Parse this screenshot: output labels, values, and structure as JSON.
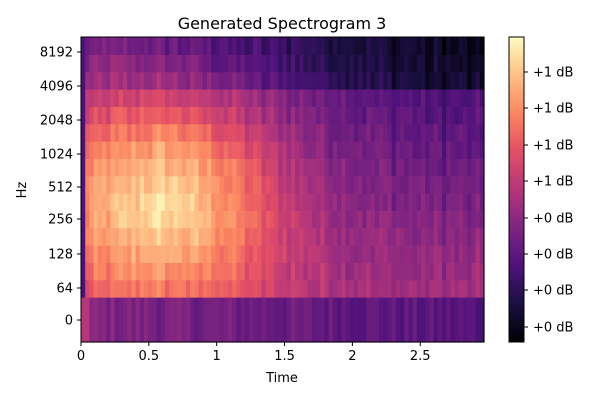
{
  "chart_data": {
    "type": "heatmap",
    "title": "Generated Spectrogram 3",
    "xlabel": "Time",
    "ylabel": "Hz",
    "x_range": [
      0,
      2.97
    ],
    "x_ticks": [
      0,
      0.5,
      1,
      1.5,
      2,
      2.5
    ],
    "x_tick_labels": [
      "0",
      "0.5",
      "1",
      "1.5",
      "2",
      "2.5"
    ],
    "y_scale": "symlog",
    "y_ticks": [
      0,
      64,
      128,
      256,
      512,
      1024,
      2048,
      4096,
      8192
    ],
    "y_tick_labels": [
      "0",
      "64",
      "128",
      "256",
      "512",
      "1024",
      "2048",
      "4096",
      "8192"
    ],
    "colormap": "magma",
    "colorbar": {
      "tick_labels": [
        "+0 dB",
        "+0 dB",
        "+0 dB",
        "+0 dB",
        "+1 dB",
        "+1 dB",
        "+1 dB",
        "+1 dB"
      ]
    },
    "grid": false,
    "pattern": {
      "time_bins": 96,
      "freq_bands": 16,
      "peak_time": 0.6,
      "note": "brightest energy around 256-2048 Hz at 0.3-0.9 s, decaying over time; lowest band (~0-40 Hz) dark"
    }
  }
}
